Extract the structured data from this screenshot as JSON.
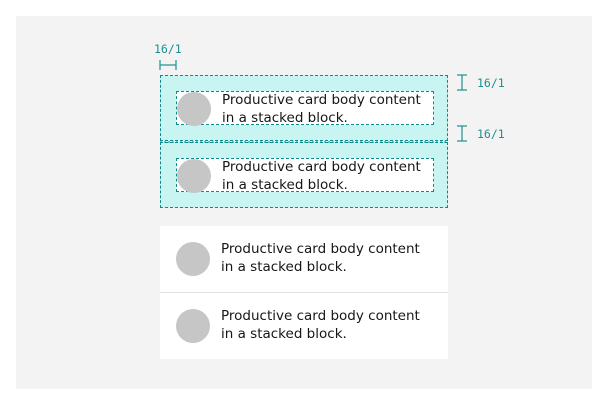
{
  "colors": {
    "canvas": "#f3f3f3",
    "spec_fill": "#c8f5f2",
    "spec_line": "#0d8a8a",
    "annotation": "#1f8f8f",
    "avatar": "#c6c6c6"
  },
  "annotations": {
    "left_padding": "16/1",
    "top_padding": "16/1",
    "bottom_padding": "16/1"
  },
  "cards": [
    {
      "body": "Productive card body content in a stacked block.",
      "spec": true
    },
    {
      "body": "Productive card body content in a stacked block.",
      "spec": true
    },
    {
      "body": "Productive card body content in a stacked block.",
      "spec": false
    },
    {
      "body": "Productive card body content in a stacked block.",
      "spec": false
    }
  ]
}
